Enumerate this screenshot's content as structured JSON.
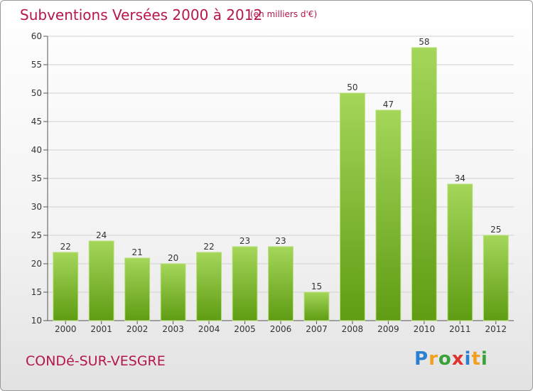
{
  "header": {
    "title": "Subventions Versées 2000 à 2012",
    "subtitle": "(en milliers d'€)"
  },
  "footer": {
    "commune": "CONDé-SUR-VESGRE",
    "brand": "Proxiti",
    "brand_colors": [
      "#2a7fd0",
      "#f2a01e",
      "#3aa23a",
      "#e0322f",
      "#2a7fd0",
      "#f2a01e",
      "#3aa23a"
    ]
  },
  "colors": {
    "accent": "#b5174a",
    "bar_top": "#a4d65a",
    "bar_bottom": "#5f9c13",
    "grid": "#d0d0d0"
  },
  "chart_data": {
    "type": "bar",
    "title": "Subventions Versées 2000 à 2012",
    "subtitle": "(en milliers d'€)",
    "categories": [
      "2000",
      "2001",
      "2002",
      "2003",
      "2004",
      "2005",
      "2006",
      "2007",
      "2008",
      "2009",
      "2010",
      "2011",
      "2012"
    ],
    "values": [
      22,
      24,
      21,
      20,
      22,
      23,
      23,
      15,
      50,
      47,
      58,
      34,
      25
    ],
    "ylim": [
      10,
      60
    ],
    "yticks": [
      10,
      15,
      20,
      25,
      30,
      35,
      40,
      45,
      50,
      55,
      60
    ],
    "grid": true,
    "xlabel": "",
    "ylabel": ""
  }
}
